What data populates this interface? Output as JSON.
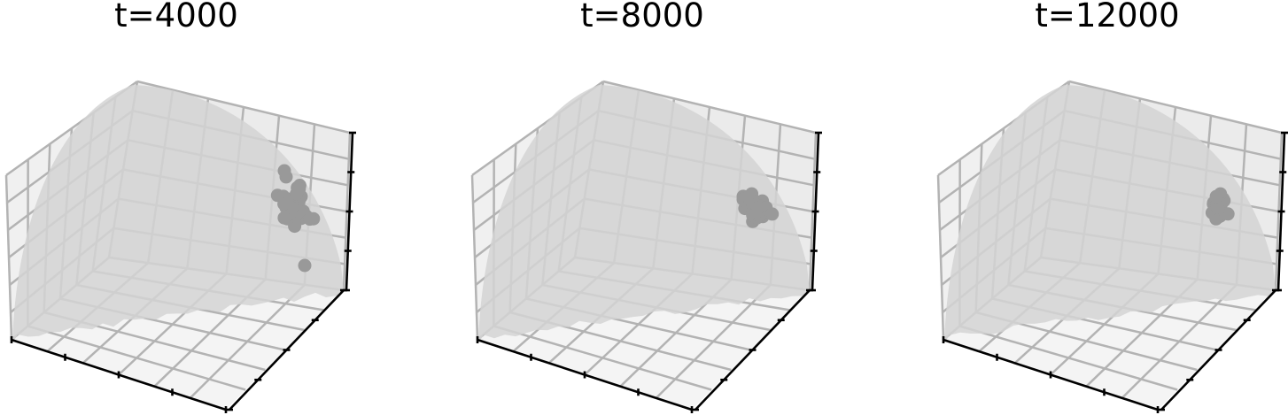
{
  "chart_data": [
    {
      "type": "scatter",
      "title": "t=4000",
      "projection": "3d",
      "surface": "shaded quarter sphere",
      "axis_ticks": "unlabeled",
      "grid": true,
      "series": [
        {
          "spread": "wide",
          "point_count": 38
        }
      ]
    },
    {
      "type": "scatter",
      "title": "t=8000",
      "projection": "3d",
      "surface": "shaded quarter sphere",
      "axis_ticks": "unlabeled",
      "grid": true,
      "series": [
        {
          "spread": "medium",
          "point_count": 30
        }
      ]
    },
    {
      "type": "scatter",
      "title": "t=12000",
      "projection": "3d",
      "surface": "shaded quarter sphere",
      "axis_ticks": "unlabeled",
      "grid": true,
      "series": [
        {
          "spread": "tight",
          "point_count": 26
        }
      ]
    }
  ],
  "colors": {
    "pane_back": "#ebebeb",
    "pane_side": "#f0f0f0",
    "pane_floor": "#f4f4f4",
    "grid": "#b3b3b3",
    "surface": "#d3d3d3",
    "points": "#999999",
    "axis_line": "#000000"
  }
}
